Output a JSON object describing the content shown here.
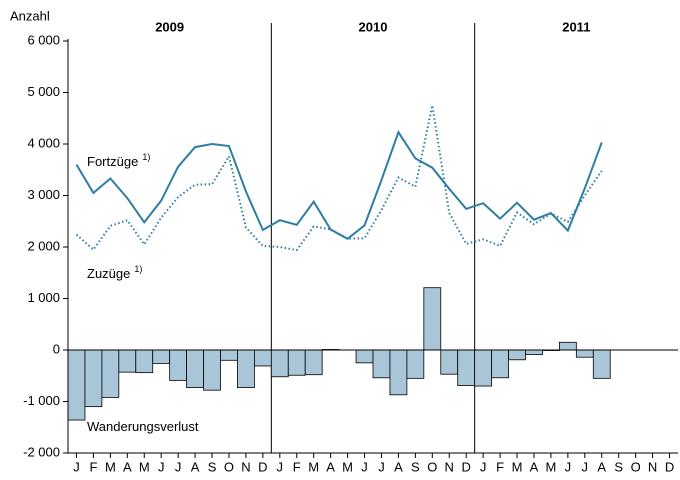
{
  "chart_data": {
    "type": "line-bar",
    "y_axis_label": "Anzahl",
    "year_groups": [
      "2009",
      "2010",
      "2011"
    ],
    "categories": [
      "J",
      "F",
      "M",
      "A",
      "M",
      "J",
      "J",
      "A",
      "S",
      "O",
      "N",
      "D",
      "J",
      "F",
      "M",
      "A",
      "M",
      "J",
      "J",
      "A",
      "S",
      "O",
      "N",
      "D",
      "J",
      "F",
      "M",
      "A",
      "M",
      "J",
      "J",
      "A",
      "S",
      "O",
      "N",
      "D"
    ],
    "series": [
      {
        "name": "Fortzüge",
        "note": "1)",
        "kind": "line",
        "style": "solid",
        "color": "#2e7da3",
        "values": [
          3600,
          3050,
          3330,
          2950,
          2480,
          2900,
          3560,
          3940,
          4000,
          3960,
          3080,
          2330,
          2520,
          2430,
          2880,
          2340,
          2160,
          2420,
          3300,
          4230,
          3720,
          3540,
          3130,
          2740,
          2850,
          2550,
          2860,
          2530,
          2660,
          2320,
          3140,
          4030,
          null,
          null,
          null,
          null
        ]
      },
      {
        "name": "Zuzüge",
        "note": "1)",
        "kind": "line",
        "style": "dotted",
        "color": "#2e7da3",
        "values": [
          2240,
          1950,
          2410,
          2520,
          2050,
          2570,
          2970,
          3210,
          3220,
          3760,
          2380,
          2020,
          2000,
          1940,
          2400,
          2340,
          2160,
          2170,
          2720,
          3350,
          3170,
          4750,
          2660,
          2060,
          2150,
          2020,
          2670,
          2440,
          2650,
          2490,
          3000,
          3480,
          null,
          null,
          null,
          null
        ]
      },
      {
        "name": "Wanderungsverlust",
        "kind": "bar",
        "color": "#a9c6d8",
        "values": [
          -1360,
          -1100,
          -920,
          -430,
          -440,
          -260,
          -590,
          -730,
          -780,
          -200,
          -730,
          -310,
          -520,
          -490,
          -480,
          10,
          0,
          -250,
          -540,
          -870,
          -550,
          1210,
          -470,
          -690,
          -700,
          -540,
          -190,
          -90,
          -10,
          150,
          -140,
          -550,
          null,
          null,
          null,
          null
        ]
      }
    ],
    "ylim": [
      -2000,
      6000
    ],
    "yticks": [
      {
        "value": -2000,
        "label": "-2 000"
      },
      {
        "value": -1000,
        "label": "-1 000"
      },
      0,
      {
        "value": 1000,
        "label": "1 000"
      },
      {
        "value": 2000,
        "label": "2 000"
      },
      {
        "value": 3000,
        "label": "3 000"
      },
      {
        "value": 4000,
        "label": "4 000"
      },
      {
        "value": 5000,
        "label": "5 000"
      },
      {
        "value": 6000,
        "label": "6 000"
      }
    ]
  }
}
